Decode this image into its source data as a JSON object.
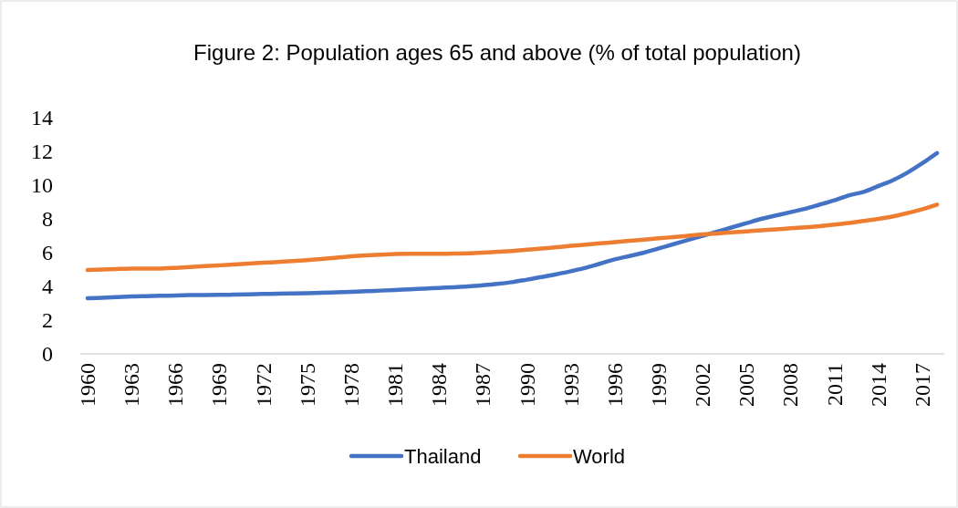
{
  "chart_data": {
    "type": "line",
    "title": "Figure 2: Population ages 65 and above (% of total population)",
    "categories": [
      "1960",
      null,
      null,
      "1963",
      null,
      null,
      "1966",
      null,
      null,
      "1969",
      null,
      null,
      "1972",
      null,
      null,
      "1975",
      null,
      null,
      "1978",
      null,
      null,
      "1981",
      null,
      null,
      "1984",
      null,
      null,
      "1987",
      null,
      null,
      "1990",
      null,
      null,
      "1993",
      null,
      null,
      "1996",
      null,
      null,
      "1999",
      null,
      null,
      "2002",
      null,
      null,
      "2005",
      null,
      null,
      "2008",
      null,
      null,
      "2011",
      null,
      null,
      "2014",
      null,
      null,
      "2017",
      null
    ],
    "series": [
      {
        "name": "Thailand",
        "color": "#4472c4",
        "values": [
          3.3,
          3.32,
          3.36,
          3.4,
          3.42,
          3.44,
          3.46,
          3.48,
          3.49,
          3.5,
          3.51,
          3.53,
          3.55,
          3.57,
          3.58,
          3.6,
          3.62,
          3.65,
          3.68,
          3.71,
          3.75,
          3.79,
          3.83,
          3.87,
          3.91,
          3.95,
          4.0,
          4.07,
          4.15,
          4.25,
          4.4,
          4.55,
          4.72,
          4.9,
          5.1,
          5.35,
          5.6,
          5.8,
          6.0,
          6.25,
          6.5,
          6.75,
          7.0,
          7.25,
          7.5,
          7.75,
          8.0,
          8.2,
          8.4,
          8.6,
          8.85,
          9.1,
          9.4,
          9.6,
          9.95,
          10.3,
          10.75,
          11.3,
          11.9
        ]
      },
      {
        "name": "World",
        "color": "#ed7d31",
        "values": [
          4.97,
          5.0,
          5.03,
          5.05,
          5.05,
          5.06,
          5.1,
          5.15,
          5.2,
          5.25,
          5.3,
          5.35,
          5.4,
          5.45,
          5.5,
          5.56,
          5.62,
          5.7,
          5.78,
          5.84,
          5.88,
          5.92,
          5.93,
          5.93,
          5.93,
          5.94,
          5.96,
          6.0,
          6.05,
          6.1,
          6.17,
          6.24,
          6.32,
          6.4,
          6.47,
          6.55,
          6.62,
          6.7,
          6.77,
          6.85,
          6.92,
          7.0,
          7.08,
          7.14,
          7.2,
          7.26,
          7.32,
          7.38,
          7.44,
          7.5,
          7.57,
          7.66,
          7.76,
          7.88,
          8.0,
          8.15,
          8.35,
          8.57,
          8.85
        ]
      }
    ],
    "ylim": [
      0,
      14
    ],
    "yticks": [
      0,
      2,
      4,
      6,
      8,
      10,
      12,
      14
    ],
    "grid": false,
    "legend": "bottom",
    "marker": "none",
    "line_style": "solid"
  }
}
